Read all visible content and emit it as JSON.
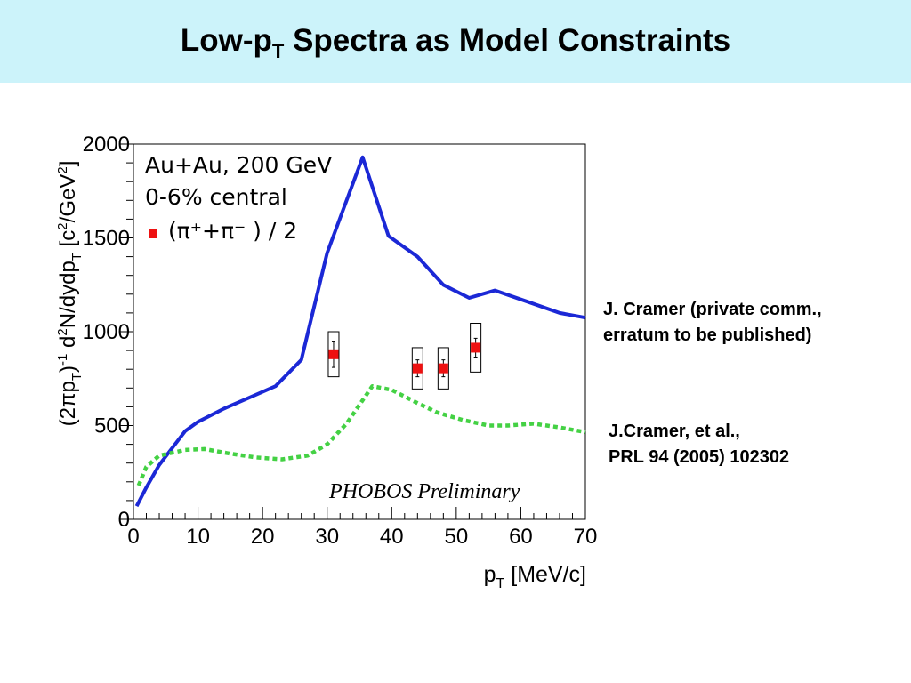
{
  "slide": {
    "title_main": "Low-p",
    "title_sub": "T",
    "title_rest": " Spectra as Model Constraints",
    "background": "#ccf3fa"
  },
  "annotations": {
    "cramer_private": [
      "J. Cramer (private comm.,",
      "erratum to be published)"
    ],
    "cramer_prl": [
      "J.Cramer, et al.,",
      "PRL 94 (2005) 102302"
    ]
  },
  "chart_data": {
    "type": "line",
    "xlabel": "p_T [MeV/c]",
    "ylabel": "(2πp_T)^-1 d²N/dydp_T [c²/GeV²]",
    "xlim": [
      0,
      70
    ],
    "ylim": [
      0,
      2000
    ],
    "x_ticks": [
      0,
      10,
      20,
      30,
      40,
      50,
      60,
      70
    ],
    "y_ticks": [
      0,
      500,
      1000,
      1500,
      2000
    ],
    "legend_lines": [
      "Au+Au, 200 GeV",
      "0-6% central"
    ],
    "legend_marker_label": "(π⁺+π⁻ ) / 2",
    "watermark": "PHOBOS Preliminary",
    "grid": false,
    "series": [
      {
        "style": "solid",
        "color": "#1b28d6",
        "points": [
          [
            0.5,
            70
          ],
          [
            2,
            170
          ],
          [
            4,
            290
          ],
          [
            8,
            470
          ],
          [
            10,
            520
          ],
          [
            14,
            590
          ],
          [
            18,
            650
          ],
          [
            22,
            710
          ],
          [
            26,
            850
          ],
          [
            30,
            1420
          ],
          [
            35.5,
            1930
          ],
          [
            39.5,
            1510
          ],
          [
            44,
            1400
          ],
          [
            48,
            1250
          ],
          [
            52,
            1180
          ],
          [
            56,
            1220
          ],
          [
            61,
            1160
          ],
          [
            66,
            1100
          ],
          [
            70,
            1075
          ]
        ]
      },
      {
        "style": "dotted",
        "color": "#44d144",
        "points": [
          [
            0.8,
            180
          ],
          [
            2,
            280
          ],
          [
            4,
            340
          ],
          [
            8,
            370
          ],
          [
            11,
            375
          ],
          [
            15,
            350
          ],
          [
            19,
            330
          ],
          [
            23,
            320
          ],
          [
            27,
            340
          ],
          [
            30,
            400
          ],
          [
            33,
            510
          ],
          [
            37,
            710
          ],
          [
            40,
            690
          ],
          [
            44,
            620
          ],
          [
            47,
            570
          ],
          [
            51,
            530
          ],
          [
            55,
            500
          ],
          [
            58,
            500
          ],
          [
            62,
            510
          ],
          [
            66,
            490
          ],
          [
            70,
            465
          ]
        ]
      },
      {
        "style": "markers",
        "color": "#ee1111",
        "points": [
          {
            "x": 31,
            "y": 880,
            "yerr": 70,
            "box": 120
          },
          {
            "x": 44,
            "y": 805,
            "yerr": 45,
            "box": 110
          },
          {
            "x": 48,
            "y": 805,
            "yerr": 45,
            "box": 110
          },
          {
            "x": 53,
            "y": 915,
            "yerr": 50,
            "box": 130
          }
        ]
      }
    ]
  }
}
